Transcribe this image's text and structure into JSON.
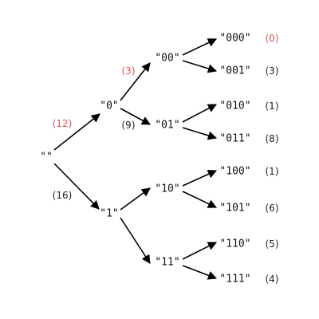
{
  "tree": {
    "root": {
      "label": "\"\""
    },
    "level1": [
      {
        "id": "n0",
        "label": "\"0\"",
        "edge_count": "(12)",
        "highlight": true
      },
      {
        "id": "n1",
        "label": "\"1\"",
        "edge_count": "(16)",
        "highlight": false
      }
    ],
    "level2": [
      {
        "id": "n00",
        "label": "\"00\"",
        "edge_count": "(3)",
        "highlight": true
      },
      {
        "id": "n01",
        "label": "\"01\"",
        "edge_count": "(9)",
        "highlight": false
      },
      {
        "id": "n10",
        "label": "\"10\"",
        "edge_count": "",
        "highlight": false
      },
      {
        "id": "n11",
        "label": "\"11\"",
        "edge_count": "",
        "highlight": false
      }
    ],
    "leaves": [
      {
        "id": "n000",
        "label": "\"000\"",
        "count": "(0)",
        "highlight": true
      },
      {
        "id": "n001",
        "label": "\"001\"",
        "count": "(3)",
        "highlight": false
      },
      {
        "id": "n010",
        "label": "\"010\"",
        "count": "(1)",
        "highlight": false
      },
      {
        "id": "n011",
        "label": "\"011\"",
        "count": "(8)",
        "highlight": false
      },
      {
        "id": "n100",
        "label": "\"100\"",
        "count": "(1)",
        "highlight": false
      },
      {
        "id": "n101",
        "label": "\"101\"",
        "count": "(6)",
        "highlight": false
      },
      {
        "id": "n110",
        "label": "\"110\"",
        "count": "(5)",
        "highlight": false
      },
      {
        "id": "n111",
        "label": "\"111\"",
        "count": "(4)",
        "highlight": false
      }
    ]
  },
  "colors": {
    "highlight": "#e05555",
    "text": "#111111",
    "edge": "#000000"
  }
}
